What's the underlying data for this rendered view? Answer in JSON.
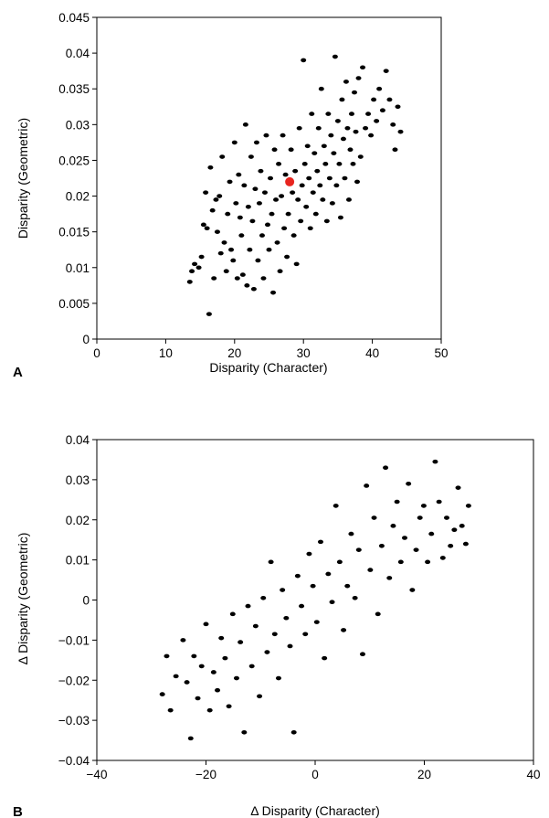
{
  "chart_data": [
    {
      "panel_label": "A",
      "type": "scatter",
      "xlabel": "Disparity (Character)",
      "ylabel": "Disparity (Geometric)",
      "xlim": [
        0,
        50
      ],
      "ylim": [
        0,
        0.045
      ],
      "xticks": [
        "0",
        "10",
        "20",
        "30",
        "40",
        "50"
      ],
      "yticks": [
        "0",
        "0.005",
        "0.01",
        "0.015",
        "0.02",
        "0.025",
        "0.03",
        "0.035",
        "0.04",
        "0.045"
      ],
      "grid": false,
      "highlight": {
        "x": 28,
        "y": 0.022,
        "color": "#e8251f"
      },
      "point_color": "#000000",
      "points": [
        [
          13.5,
          0.008
        ],
        [
          13.8,
          0.0095
        ],
        [
          14.2,
          0.0105
        ],
        [
          14.8,
          0.01
        ],
        [
          15.2,
          0.0115
        ],
        [
          15.5,
          0.016
        ],
        [
          15.8,
          0.0205
        ],
        [
          16.0,
          0.0155
        ],
        [
          16.3,
          0.0035
        ],
        [
          16.5,
          0.024
        ],
        [
          16.8,
          0.018
        ],
        [
          17.0,
          0.0085
        ],
        [
          17.3,
          0.0195
        ],
        [
          17.5,
          0.015
        ],
        [
          17.8,
          0.02
        ],
        [
          18.0,
          0.012
        ],
        [
          18.2,
          0.0255
        ],
        [
          18.5,
          0.0135
        ],
        [
          18.8,
          0.0095
        ],
        [
          19.0,
          0.0175
        ],
        [
          19.3,
          0.022
        ],
        [
          19.5,
          0.0125
        ],
        [
          19.8,
          0.011
        ],
        [
          20.0,
          0.0275
        ],
        [
          20.2,
          0.019
        ],
        [
          20.4,
          0.0085
        ],
        [
          20.6,
          0.023
        ],
        [
          20.8,
          0.017
        ],
        [
          21.0,
          0.0145
        ],
        [
          21.2,
          0.009
        ],
        [
          21.4,
          0.0215
        ],
        [
          21.6,
          0.03
        ],
        [
          21.8,
          0.0075
        ],
        [
          22.0,
          0.0185
        ],
        [
          22.2,
          0.0125
        ],
        [
          22.4,
          0.0255
        ],
        [
          22.6,
          0.0165
        ],
        [
          22.8,
          0.007
        ],
        [
          23.0,
          0.021
        ],
        [
          23.2,
          0.0275
        ],
        [
          23.4,
          0.011
        ],
        [
          23.6,
          0.019
        ],
        [
          23.8,
          0.0235
        ],
        [
          24.0,
          0.0145
        ],
        [
          24.2,
          0.0085
        ],
        [
          24.4,
          0.0205
        ],
        [
          24.6,
          0.0285
        ],
        [
          24.8,
          0.016
        ],
        [
          25.0,
          0.0125
        ],
        [
          25.2,
          0.0225
        ],
        [
          25.4,
          0.0175
        ],
        [
          25.6,
          0.0065
        ],
        [
          25.8,
          0.0265
        ],
        [
          26.0,
          0.0195
        ],
        [
          26.2,
          0.0135
        ],
        [
          26.4,
          0.0245
        ],
        [
          26.6,
          0.0095
        ],
        [
          26.8,
          0.02
        ],
        [
          27.0,
          0.0285
        ],
        [
          27.2,
          0.0155
        ],
        [
          27.4,
          0.023
        ],
        [
          27.6,
          0.0115
        ],
        [
          27.8,
          0.0175
        ],
        [
          28.2,
          0.0265
        ],
        [
          28.4,
          0.0205
        ],
        [
          28.6,
          0.0145
        ],
        [
          28.8,
          0.0235
        ],
        [
          29.0,
          0.0105
        ],
        [
          29.2,
          0.0195
        ],
        [
          29.4,
          0.0295
        ],
        [
          29.6,
          0.0165
        ],
        [
          29.8,
          0.0215
        ],
        [
          30.0,
          0.039
        ],
        [
          30.2,
          0.0245
        ],
        [
          30.4,
          0.0185
        ],
        [
          30.6,
          0.027
        ],
        [
          30.8,
          0.0225
        ],
        [
          31.0,
          0.0155
        ],
        [
          31.2,
          0.0315
        ],
        [
          31.4,
          0.0205
        ],
        [
          31.6,
          0.026
        ],
        [
          31.8,
          0.0175
        ],
        [
          32.0,
          0.0235
        ],
        [
          32.2,
          0.0295
        ],
        [
          32.4,
          0.0215
        ],
        [
          32.6,
          0.035
        ],
        [
          32.8,
          0.0195
        ],
        [
          33.0,
          0.027
        ],
        [
          33.2,
          0.0245
        ],
        [
          33.4,
          0.0165
        ],
        [
          33.6,
          0.0315
        ],
        [
          33.8,
          0.0225
        ],
        [
          34.0,
          0.0285
        ],
        [
          34.2,
          0.019
        ],
        [
          34.4,
          0.026
        ],
        [
          34.6,
          0.0395
        ],
        [
          34.8,
          0.0215
        ],
        [
          35.0,
          0.0305
        ],
        [
          35.2,
          0.0245
        ],
        [
          35.4,
          0.017
        ],
        [
          35.6,
          0.0335
        ],
        [
          35.8,
          0.028
        ],
        [
          36.0,
          0.0225
        ],
        [
          36.2,
          0.036
        ],
        [
          36.4,
          0.0295
        ],
        [
          36.6,
          0.0195
        ],
        [
          36.8,
          0.0265
        ],
        [
          37.0,
          0.0315
        ],
        [
          37.2,
          0.0245
        ],
        [
          37.4,
          0.0345
        ],
        [
          37.6,
          0.029
        ],
        [
          37.8,
          0.022
        ],
        [
          38.0,
          0.0365
        ],
        [
          38.3,
          0.0255
        ],
        [
          38.6,
          0.038
        ],
        [
          39.0,
          0.0295
        ],
        [
          39.4,
          0.0315
        ],
        [
          39.8,
          0.0285
        ],
        [
          40.2,
          0.0335
        ],
        [
          40.6,
          0.0305
        ],
        [
          41.0,
          0.035
        ],
        [
          41.5,
          0.032
        ],
        [
          42.0,
          0.0375
        ],
        [
          42.5,
          0.0335
        ],
        [
          43.0,
          0.03
        ],
        [
          43.3,
          0.0265
        ],
        [
          43.7,
          0.0325
        ],
        [
          44.1,
          0.029
        ]
      ]
    },
    {
      "panel_label": "B",
      "type": "scatter",
      "xlabel": "Δ Disparity (Character)",
      "ylabel": "Δ Disparity (Geometric)",
      "xlim": [
        -40,
        40
      ],
      "ylim": [
        -0.04,
        0.04
      ],
      "xticks": [
        "−40",
        "−20",
        "0",
        "20",
        "40"
      ],
      "yticks": [
        "−0.04",
        "−0.03",
        "−0.02",
        "−0.01",
        "0",
        "0.01",
        "0.02",
        "0.03",
        "0.04"
      ],
      "grid": false,
      "point_color": "#000000",
      "points": [
        [
          -28.0,
          -0.0235
        ],
        [
          -27.2,
          -0.014
        ],
        [
          -26.5,
          -0.0275
        ],
        [
          -25.5,
          -0.019
        ],
        [
          -24.2,
          -0.01
        ],
        [
          -23.5,
          -0.0205
        ],
        [
          -22.8,
          -0.0345
        ],
        [
          -22.2,
          -0.014
        ],
        [
          -21.5,
          -0.0245
        ],
        [
          -20.8,
          -0.0165
        ],
        [
          -20.0,
          -0.006
        ],
        [
          -19.3,
          -0.0275
        ],
        [
          -18.6,
          -0.018
        ],
        [
          -17.9,
          -0.0225
        ],
        [
          -17.2,
          -0.0095
        ],
        [
          -16.5,
          -0.0145
        ],
        [
          -15.8,
          -0.0265
        ],
        [
          -15.1,
          -0.0035
        ],
        [
          -14.4,
          -0.0195
        ],
        [
          -13.7,
          -0.0105
        ],
        [
          -13.0,
          -0.033
        ],
        [
          -12.3,
          -0.0015
        ],
        [
          -11.6,
          -0.0165
        ],
        [
          -10.9,
          -0.0065
        ],
        [
          -10.2,
          -0.024
        ],
        [
          -9.5,
          0.0005
        ],
        [
          -8.8,
          -0.013
        ],
        [
          -8.1,
          0.0095
        ],
        [
          -7.4,
          -0.0085
        ],
        [
          -6.7,
          -0.0195
        ],
        [
          -6.0,
          0.0025
        ],
        [
          -5.3,
          -0.0045
        ],
        [
          -4.6,
          -0.0115
        ],
        [
          -3.9,
          -0.033
        ],
        [
          -3.2,
          0.006
        ],
        [
          -2.5,
          -0.0015
        ],
        [
          -1.8,
          -0.0085
        ],
        [
          -1.1,
          0.0115
        ],
        [
          -0.4,
          0.0035
        ],
        [
          0.3,
          -0.0055
        ],
        [
          1.0,
          0.0145
        ],
        [
          1.7,
          -0.0145
        ],
        [
          2.4,
          0.0065
        ],
        [
          3.1,
          -0.0005
        ],
        [
          3.8,
          0.0235
        ],
        [
          4.5,
          0.0095
        ],
        [
          5.2,
          -0.0075
        ],
        [
          5.9,
          0.0035
        ],
        [
          6.6,
          0.0165
        ],
        [
          7.3,
          0.0005
        ],
        [
          8.0,
          0.0125
        ],
        [
          8.7,
          -0.0135
        ],
        [
          9.4,
          0.0285
        ],
        [
          10.1,
          0.0075
        ],
        [
          10.8,
          0.0205
        ],
        [
          11.5,
          -0.0035
        ],
        [
          12.2,
          0.0135
        ],
        [
          12.9,
          0.033
        ],
        [
          13.6,
          0.0055
        ],
        [
          14.3,
          0.0185
        ],
        [
          15.0,
          0.0245
        ],
        [
          15.7,
          0.0095
        ],
        [
          16.4,
          0.0155
        ],
        [
          17.1,
          0.029
        ],
        [
          17.8,
          0.0025
        ],
        [
          18.5,
          0.0125
        ],
        [
          19.2,
          0.0205
        ],
        [
          19.9,
          0.0235
        ],
        [
          20.6,
          0.0095
        ],
        [
          21.3,
          0.0165
        ],
        [
          22.0,
          0.0345
        ],
        [
          22.7,
          0.0245
        ],
        [
          23.4,
          0.0105
        ],
        [
          24.1,
          0.0205
        ],
        [
          24.8,
          0.0135
        ],
        [
          25.5,
          0.0175
        ],
        [
          26.2,
          0.028
        ],
        [
          26.9,
          0.0185
        ],
        [
          27.6,
          0.014
        ],
        [
          28.1,
          0.0235
        ]
      ]
    }
  ]
}
